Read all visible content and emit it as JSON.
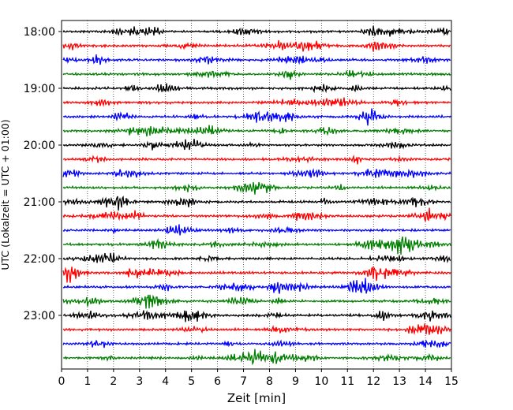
{
  "chart_data": {
    "type": "line",
    "title": "",
    "xlabel": "Zeit  [min]",
    "ylabel": "UTC (Lokalzeit = UTC + 01:00)",
    "xlim": [
      0,
      15
    ],
    "x_ticks": [
      0,
      1,
      2,
      3,
      4,
      5,
      6,
      7,
      8,
      9,
      10,
      11,
      12,
      13,
      14,
      15
    ],
    "x_tick_labels": [
      "0",
      "1",
      "2",
      "3",
      "4",
      "5",
      "6",
      "7",
      "8",
      "9",
      "10",
      "11",
      "12",
      "13",
      "14",
      "15"
    ],
    "grid": "vertical dotted at each minute",
    "trace_interval_minutes": 15,
    "start_time": "18:00",
    "trace_count": 24,
    "y_tick_labels": [
      {
        "label": "18:00",
        "trace_index": 0
      },
      {
        "label": "19:00",
        "trace_index": 4
      },
      {
        "label": "20:00",
        "trace_index": 8
      },
      {
        "label": "21:00",
        "trace_index": 12
      },
      {
        "label": "22:00",
        "trace_index": 16
      },
      {
        "label": "23:00",
        "trace_index": 20
      }
    ],
    "trace_colors": [
      "#000000",
      "#ff0000",
      "#0000ff",
      "#007f00"
    ],
    "legend": "none"
  }
}
